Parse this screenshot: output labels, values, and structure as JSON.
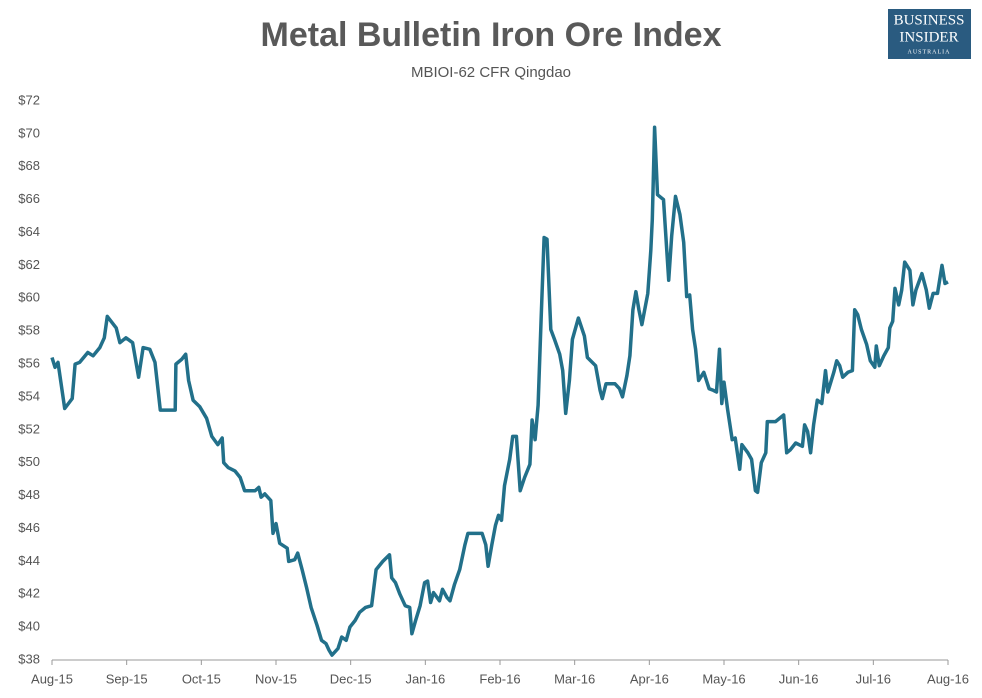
{
  "chart_data": {
    "type": "line",
    "title": "Metal Bulletin Iron Ore Index",
    "subtitle": "MBIOI-62 CFR Qingdao",
    "color": "#22708a",
    "x": [
      0,
      0.04,
      0.08,
      0.17,
      0.27,
      0.31,
      0.37,
      0.48,
      0.55,
      0.64,
      0.7,
      0.74,
      0.86,
      0.91,
      0.99,
      1.08,
      1.16,
      1.22,
      1.31,
      1.38,
      1.45,
      1.65,
      1.66,
      1.74,
      1.79,
      1.83,
      1.89,
      1.98,
      2.07,
      2.14,
      2.22,
      2.28,
      2.3,
      2.36,
      2.45,
      2.52,
      2.58,
      2.72,
      2.77,
      2.8,
      2.85,
      2.93,
      2.96,
      3.0,
      3.05,
      3.15,
      3.17,
      3.25,
      3.29,
      3.35,
      3.41,
      3.47,
      3.55,
      3.61,
      3.67,
      3.71,
      3.75,
      3.83,
      3.88,
      3.94,
      3.99,
      4.06,
      4.12,
      4.2,
      4.28,
      4.34,
      4.43,
      4.52,
      4.55,
      4.6,
      4.66,
      4.73,
      4.79,
      4.82,
      4.87,
      4.93,
      4.99,
      5.03,
      5.07,
      5.11,
      5.19,
      5.23,
      5.29,
      5.33,
      5.39,
      5.46,
      5.53,
      5.57,
      5.76,
      5.81,
      5.84,
      5.89,
      5.94,
      5.98,
      6.02,
      6.06,
      6.13,
      6.17,
      6.22,
      6.27,
      6.33,
      6.4,
      6.43,
      6.47,
      6.51,
      6.55,
      6.59,
      6.63,
      6.68,
      6.73,
      6.8,
      6.84,
      6.88,
      6.93,
      6.97,
      7.05,
      7.13,
      7.17,
      7.28,
      7.34,
      7.37,
      7.42,
      7.54,
      7.6,
      7.64,
      7.7,
      7.74,
      7.78,
      7.82,
      7.86,
      7.9,
      7.98,
      8.02,
      8.04,
      8.07,
      8.11,
      8.19,
      8.26,
      8.3,
      8.35,
      8.41,
      8.46,
      8.5,
      8.54,
      8.58,
      8.62,
      8.66,
      8.73,
      8.8,
      8.86,
      8.9,
      8.94,
      8.97,
      9.0,
      9.05,
      9.11,
      9.15,
      9.21,
      9.24,
      9.32,
      9.37,
      9.42,
      9.45,
      9.5,
      9.56,
      9.58,
      9.69,
      9.8,
      9.84,
      9.89,
      9.96,
      10.05,
      10.08,
      10.12,
      10.16,
      10.2,
      10.25,
      10.31,
      10.36,
      10.39,
      10.47,
      10.51,
      10.55,
      10.59,
      10.66,
      10.72,
      10.75,
      10.79,
      10.84,
      10.91,
      10.96,
      11.02,
      11.04,
      11.08,
      11.14,
      11.2,
      11.22,
      11.26,
      11.29,
      11.34,
      11.38,
      11.42,
      11.49,
      11.53,
      11.57,
      11.65,
      11.71,
      11.75,
      11.8,
      11.86,
      11.92,
      11.96,
      12.0
    ],
    "values": [
      56.4,
      55.8,
      56.1,
      53.3,
      53.9,
      56.0,
      56.1,
      56.7,
      56.5,
      57.0,
      57.6,
      58.9,
      58.2,
      57.3,
      57.6,
      57.3,
      55.2,
      57.0,
      56.9,
      56.1,
      53.2,
      53.2,
      56.0,
      56.3,
      56.6,
      55.0,
      53.8,
      53.4,
      52.7,
      51.6,
      51.1,
      51.5,
      50.0,
      49.7,
      49.5,
      49.1,
      48.3,
      48.3,
      48.5,
      47.9,
      48.1,
      47.7,
      45.7,
      46.3,
      45.1,
      44.8,
      44.0,
      44.1,
      44.5,
      43.5,
      42.4,
      41.2,
      40.1,
      39.2,
      39.0,
      38.6,
      38.3,
      38.7,
      39.4,
      39.2,
      40.0,
      40.4,
      40.9,
      41.2,
      41.3,
      43.5,
      44.0,
      44.4,
      43.0,
      42.7,
      42.0,
      41.3,
      41.2,
      39.6,
      40.4,
      41.3,
      42.7,
      42.8,
      41.5,
      42.1,
      41.6,
      42.3,
      41.8,
      41.6,
      42.6,
      43.5,
      45.0,
      45.7,
      45.7,
      45.0,
      43.7,
      45.0,
      46.2,
      46.8,
      46.5,
      48.6,
      50.2,
      51.6,
      51.6,
      48.3,
      49.1,
      49.9,
      52.6,
      51.4,
      53.5,
      58.7,
      63.7,
      63.6,
      58.1,
      57.5,
      56.6,
      55.6,
      53.0,
      55.0,
      57.5,
      58.8,
      57.7,
      56.4,
      55.9,
      54.4,
      53.9,
      54.8,
      54.8,
      54.5,
      54.0,
      55.3,
      56.5,
      59.3,
      60.4,
      59.3,
      58.4,
      60.3,
      62.9,
      64.8,
      70.4,
      66.3,
      66.0,
      61.1,
      63.8,
      66.2,
      65.1,
      63.4,
      60.1,
      60.2,
      58.1,
      56.9,
      55.0,
      55.5,
      54.5,
      54.4,
      54.3,
      56.9,
      53.6,
      54.9,
      53.2,
      51.4,
      51.5,
      49.6,
      51.1,
      50.6,
      50.2,
      48.3,
      48.2,
      50.0,
      50.6,
      52.5,
      52.5,
      52.9,
      50.6,
      50.8,
      51.2,
      51.0,
      52.3,
      51.9,
      50.6,
      52.3,
      53.8,
      53.6,
      55.6,
      54.3,
      55.5,
      56.2,
      55.9,
      55.2,
      55.5,
      55.6,
      59.3,
      59.0,
      58.1,
      57.2,
      56.2,
      55.8,
      57.1,
      55.9,
      56.5,
      57.0,
      58.2,
      58.6,
      60.6,
      59.6,
      60.5,
      62.2,
      61.7,
      59.6,
      60.5,
      61.5,
      60.5,
      59.4,
      60.3,
      60.3,
      62.0,
      60.9,
      61.0
    ],
    "xlim": [
      0,
      12
    ],
    "xticks": [
      {
        "value": 0,
        "label": "Aug-15"
      },
      {
        "value": 1,
        "label": "Sep-15"
      },
      {
        "value": 2,
        "label": "Oct-15"
      },
      {
        "value": 3,
        "label": "Nov-15"
      },
      {
        "value": 4,
        "label": "Dec-15"
      },
      {
        "value": 5,
        "label": "Jan-16"
      },
      {
        "value": 6,
        "label": "Feb-16"
      },
      {
        "value": 7,
        "label": "Mar-16"
      },
      {
        "value": 8,
        "label": "Apr-16"
      },
      {
        "value": 9,
        "label": "May-16"
      },
      {
        "value": 10,
        "label": "Jun-16"
      },
      {
        "value": 11,
        "label": "Jul-16"
      },
      {
        "value": 12,
        "label": "Aug-16"
      }
    ],
    "ylim": [
      38,
      72
    ],
    "yticks": [
      {
        "value": 38,
        "label": "$38"
      },
      {
        "value": 40,
        "label": "$40"
      },
      {
        "value": 42,
        "label": "$42"
      },
      {
        "value": 44,
        "label": "$44"
      },
      {
        "value": 46,
        "label": "$46"
      },
      {
        "value": 48,
        "label": "$48"
      },
      {
        "value": 50,
        "label": "$50"
      },
      {
        "value": 52,
        "label": "$52"
      },
      {
        "value": 54,
        "label": "$54"
      },
      {
        "value": 56,
        "label": "$56"
      },
      {
        "value": 58,
        "label": "$58"
      },
      {
        "value": 60,
        "label": "$60"
      },
      {
        "value": 62,
        "label": "$62"
      },
      {
        "value": 64,
        "label": "$64"
      },
      {
        "value": 66,
        "label": "$66"
      },
      {
        "value": 68,
        "label": "$68"
      },
      {
        "value": 70,
        "label": "$70"
      },
      {
        "value": 72,
        "label": "$72"
      }
    ],
    "grid": false
  },
  "logo": {
    "line1": "BUSINESS",
    "line2": "INSIDER",
    "line3": "AUSTRALIA"
  }
}
